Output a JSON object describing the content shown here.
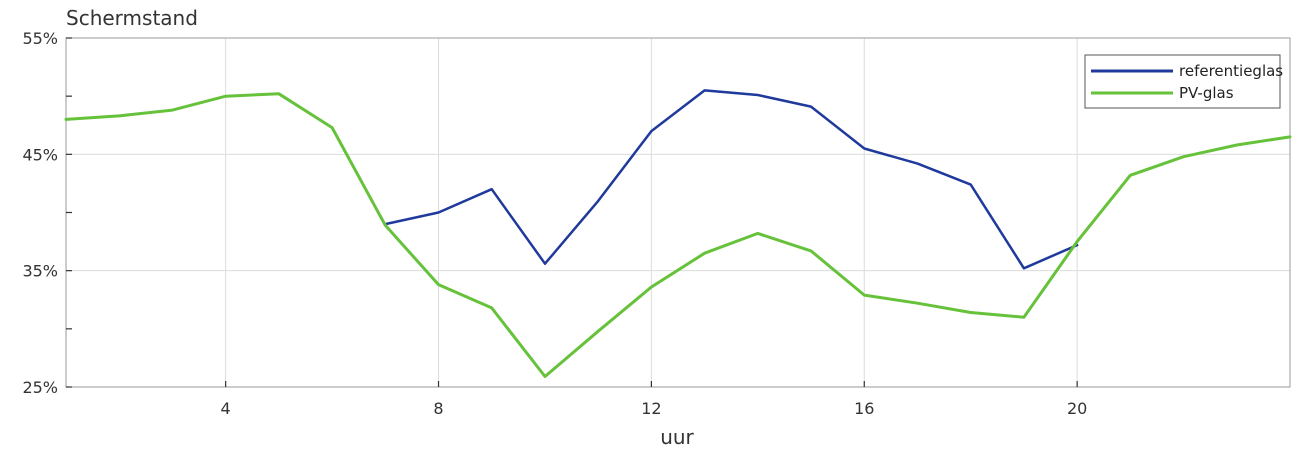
{
  "chart_data": {
    "type": "line",
    "title": "",
    "xlabel": "uur",
    "ylabel": "Schermstand",
    "xlim": [
      1,
      24
    ],
    "ylim": [
      25,
      55
    ],
    "x_ticks": [
      4,
      8,
      12,
      16,
      20
    ],
    "x_tick_labels": [
      "4",
      "8",
      "12",
      "16",
      "20"
    ],
    "y_ticks": [
      25,
      35,
      45,
      55
    ],
    "y_tick_labels": [
      "25%",
      "35%",
      "45%",
      "55%"
    ],
    "grid": true,
    "legend_position": "top-right",
    "series": [
      {
        "name": "referentieglas",
        "color": "#1f3a9c",
        "x": [
          7,
          8,
          9,
          10,
          11,
          12,
          13,
          14,
          15,
          16,
          17,
          18,
          19,
          20
        ],
        "values": [
          39.0,
          40.0,
          42.0,
          35.6,
          41.0,
          47.0,
          50.5,
          50.1,
          49.1,
          45.5,
          44.2,
          42.4,
          35.2,
          37.2
        ]
      },
      {
        "name": "PV-glas",
        "color": "#66c23a",
        "x": [
          1,
          2,
          3,
          4,
          5,
          6,
          7,
          8,
          9,
          10,
          11,
          12,
          13,
          14,
          15,
          16,
          17,
          18,
          19,
          20,
          21,
          22,
          23,
          24
        ],
        "values": [
          48.0,
          48.3,
          48.8,
          50.0,
          50.2,
          47.3,
          38.9,
          33.8,
          31.8,
          25.9,
          29.8,
          33.6,
          36.5,
          38.2,
          36.7,
          32.9,
          32.2,
          31.4,
          31.0,
          37.5,
          43.2,
          44.8,
          45.8,
          46.5
        ]
      }
    ]
  }
}
